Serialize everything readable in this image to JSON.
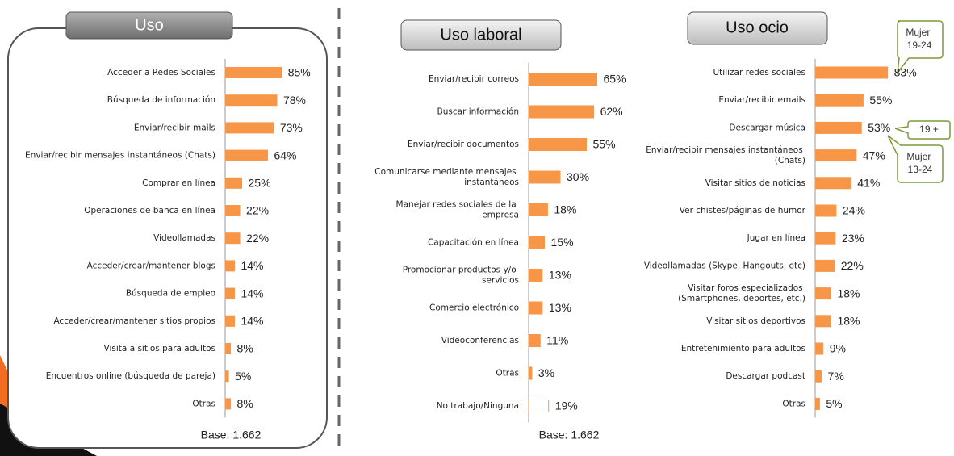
{
  "chart_data": [
    {
      "type": "bar",
      "title": "Uso",
      "base": "Base: 1.662",
      "color": "#f79646",
      "categories": [
        "Acceder a Redes Sociales",
        "Búsqueda de información",
        "Enviar/recibir mails",
        "Enviar/recibir mensajes instantáneos (Chats)",
        "Comprar en línea",
        "Operaciones de banca en línea",
        "Videollamadas",
        "Acceder/crear/mantener blogs",
        "Búsqueda de empleo",
        "Acceder/crear/mantener sitios propios",
        "Visita a sitios para adultos",
        "Encuentros online (búsqueda de pareja)",
        "Otras"
      ],
      "values": [
        85,
        78,
        73,
        64,
        25,
        22,
        22,
        14,
        14,
        14,
        8,
        5,
        8
      ],
      "value_labels": [
        "85%",
        "78%",
        "73%",
        "64%",
        "25%",
        "22%",
        "22%",
        "14%",
        "14%",
        "14%",
        "8%",
        "5%",
        "8%"
      ]
    },
    {
      "type": "bar",
      "title": "Uso laboral",
      "base": "Base: 1.662",
      "color": "#f79646",
      "colors": [
        "#f79646",
        "#f79646",
        "#f79646",
        "#f79646",
        "#f79646",
        "#f79646",
        "#f79646",
        "#f79646",
        "#f79646",
        "#f79646",
        "#ffffff"
      ],
      "categories": [
        "Enviar/recibir correos",
        "Buscar información",
        "Enviar/recibir documentos",
        "Comunicarse mediante mensajes instantáneos",
        "Manejar redes sociales de la empresa",
        "Capacitación en línea",
        "Promocionar productos y/o servicios",
        "Comercio electrónico",
        "Videoconferencias",
        "Otras",
        "No trabajo/Ninguna"
      ],
      "values": [
        65,
        62,
        55,
        30,
        18,
        15,
        13,
        13,
        11,
        3,
        19
      ],
      "value_labels": [
        "65%",
        "62%",
        "55%",
        "30%",
        "18%",
        "15%",
        "13%",
        "13%",
        "11%",
        "3%",
        "19%"
      ]
    },
    {
      "type": "bar",
      "title": "Uso ocio",
      "color": "#f79646",
      "categories": [
        "Utilizar redes sociales",
        "Enviar/recibir emails",
        "Descargar música",
        "Enviar/recibir mensajes instantáneos (Chats)",
        "Visitar sitios de noticias",
        "Ver chistes/páginas de humor",
        "Jugar en línea",
        "Videollamadas (Skype, Hangouts, etc)",
        "Visitar foros especializados (Smartphones, deportes, etc.)",
        "Visitar sitios deportivos",
        "Entretenimiento para adultos",
        "Descargar podcast",
        "Otras"
      ],
      "values": [
        83,
        55,
        53,
        47,
        41,
        24,
        23,
        22,
        18,
        18,
        9,
        7,
        5
      ],
      "value_labels": [
        "83%",
        "55%",
        "53%",
        "47%",
        "41%",
        "24%",
        "23%",
        "22%",
        "18%",
        "18%",
        "9%",
        "7%",
        "5%"
      ],
      "annotations": [
        "Mujer 19-24",
        "19 +",
        "Mujer 13-24"
      ]
    }
  ]
}
